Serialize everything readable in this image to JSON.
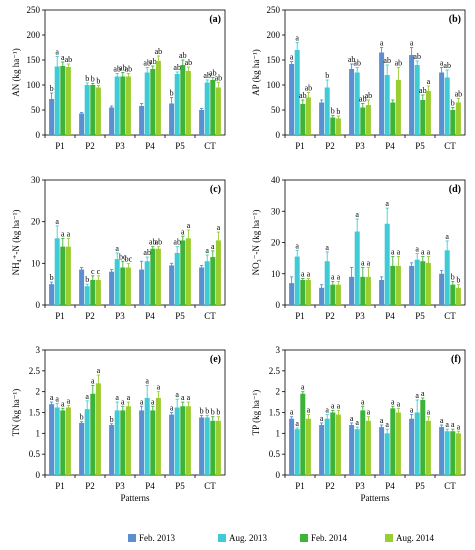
{
  "legend": [
    {
      "name": "Feb. 2013",
      "color": "#5b8fd0"
    },
    {
      "name": "Aug. 2013",
      "color": "#3ecbd6"
    },
    {
      "name": "Feb. 2014",
      "color": "#3cb43a"
    },
    {
      "name": "Aug. 2014",
      "color": "#9acd2f"
    }
  ],
  "chart_data": [
    {
      "type": "bar",
      "panel": "(a)",
      "ylabel": "AN (kg ha⁻¹)",
      "ylim": [
        0,
        250
      ],
      "yticks": [
        0,
        50,
        100,
        150,
        200,
        250
      ],
      "categories": [
        "P1",
        "P2",
        "P3",
        "P4",
        "P5",
        "CT"
      ],
      "series": [
        {
          "name": "Feb. 2013",
          "values": [
            72,
            43,
            55,
            58,
            63,
            50
          ],
          "errors": [
            12,
            2,
            3,
            5,
            12,
            3
          ],
          "letters": [
            "b",
            "",
            "",
            "",
            "b",
            ""
          ]
        },
        {
          "name": "Aug. 2013",
          "values": [
            137,
            100,
            117,
            125,
            122,
            105
          ],
          "errors": [
            20,
            4,
            6,
            10,
            4,
            5
          ],
          "letters": [
            "a",
            "b",
            "ab",
            "ab",
            "ab",
            "ab"
          ]
        },
        {
          "name": "Feb. 2014",
          "values": [
            138,
            100,
            117,
            132,
            140,
            110
          ],
          "errors": [
            8,
            3,
            8,
            6,
            10,
            5
          ],
          "letters": [
            "a",
            "b",
            "ab",
            "ab",
            "ab",
            "ab"
          ]
        },
        {
          "name": "Aug. 2014",
          "values": [
            136,
            95,
            117,
            148,
            128,
            95
          ],
          "errors": [
            6,
            4,
            6,
            10,
            8,
            10
          ],
          "letters": [
            "ab",
            "b",
            "ab",
            "ab",
            "ab",
            "ab"
          ]
        }
      ]
    },
    {
      "type": "bar",
      "panel": "(b)",
      "ylabel": "AP (kg ha⁻¹)",
      "ylim": [
        0,
        250
      ],
      "yticks": [
        0,
        50,
        100,
        150,
        200,
        250
      ],
      "categories": [
        "P1",
        "P2",
        "P3",
        "P4",
        "P5",
        "CT"
      ],
      "series": [
        {
          "name": "Feb. 2013",
          "values": [
            142,
            65,
            132,
            165,
            160,
            125
          ],
          "errors": [
            5,
            5,
            10,
            10,
            15,
            10
          ],
          "letters": [
            "a",
            "",
            "ab",
            "a",
            "a",
            "a"
          ]
        },
        {
          "name": "Aug. 2013",
          "values": [
            170,
            95,
            125,
            120,
            140,
            115
          ],
          "errors": [
            15,
            15,
            10,
            20,
            8,
            15
          ],
          "letters": [
            "a",
            "b",
            "ab",
            "ab",
            "ab",
            "ab"
          ]
        },
        {
          "name": "Feb. 2014",
          "values": [
            62,
            35,
            55,
            65,
            70,
            50
          ],
          "errors": [
            8,
            4,
            8,
            5,
            10,
            5
          ],
          "letters": [
            "ab",
            "b",
            "ab",
            "",
            "ab",
            "b"
          ]
        },
        {
          "name": "Aug. 2014",
          "values": [
            75,
            33,
            60,
            110,
            88,
            65
          ],
          "errors": [
            10,
            5,
            10,
            25,
            10,
            8
          ],
          "letters": [
            "ab",
            "b",
            "ab",
            "ab",
            "a",
            "ab"
          ]
        }
      ]
    },
    {
      "type": "bar",
      "panel": "(c)",
      "ylabel": "NH₄⁺-N (kg ha⁻¹)",
      "ylim": [
        0,
        30
      ],
      "yticks": [
        0,
        10,
        20,
        30
      ],
      "categories": [
        "P1",
        "P2",
        "P3",
        "P4",
        "P5",
        "CT"
      ],
      "series": [
        {
          "name": "Feb. 2013",
          "values": [
            5,
            8.5,
            8,
            8.5,
            9.5,
            9
          ],
          "errors": [
            0.5,
            0.5,
            0.5,
            2,
            0.5,
            0.5
          ],
          "letters": [
            "b",
            "",
            "",
            "",
            "",
            ""
          ]
        },
        {
          "name": "Aug. 2013",
          "values": [
            16,
            4.5,
            11,
            10.5,
            12.5,
            10.5
          ],
          "errors": [
            3,
            0.5,
            1.5,
            1,
            1.5,
            1.5
          ],
          "letters": [
            "a",
            "b",
            "a",
            "ab",
            "ab",
            "a"
          ]
        },
        {
          "name": "Feb. 2014",
          "values": [
            14,
            6,
            9,
            13.5,
            15.5,
            11.5
          ],
          "errors": [
            2,
            1,
            1.5,
            0.5,
            1,
            1.5
          ],
          "letters": [
            "a",
            "c",
            "bc",
            "ab",
            "a",
            "a"
          ]
        },
        {
          "name": "Aug. 2014",
          "values": [
            14,
            6,
            9,
            13.5,
            16,
            15.5
          ],
          "errors": [
            2,
            1,
            1,
            0.5,
            2,
            2
          ],
          "letters": [
            "a",
            "c",
            "bc",
            "ab",
            "a",
            "a"
          ]
        }
      ]
    },
    {
      "type": "bar",
      "panel": "(d)",
      "ylabel": "NO₃⁻-N (kg ha⁻¹)",
      "ylim": [
        0,
        40
      ],
      "yticks": [
        0,
        10,
        20,
        30,
        40
      ],
      "categories": [
        "P1",
        "P2",
        "P3",
        "P4",
        "P5",
        "CT"
      ],
      "series": [
        {
          "name": "Feb. 2013",
          "values": [
            7,
            5.5,
            9,
            8,
            12.5,
            10
          ],
          "errors": [
            2,
            1,
            3,
            1,
            1,
            1
          ],
          "letters": [
            "",
            "",
            "",
            "",
            "",
            ""
          ]
        },
        {
          "name": "Aug. 2013",
          "values": [
            15.5,
            14,
            23.5,
            26,
            14.5,
            17.5
          ],
          "errors": [
            2,
            3,
            4,
            5,
            2,
            3
          ],
          "letters": [
            "a",
            "a",
            "a",
            "a",
            "a",
            "a"
          ]
        },
        {
          "name": "Feb. 2014",
          "values": [
            8,
            6.5,
            9,
            12.5,
            14,
            6.5
          ],
          "errors": [
            0.5,
            1,
            3,
            3,
            1.5,
            1
          ],
          "letters": [
            "a",
            "a",
            "a",
            "a",
            "a",
            "b"
          ]
        },
        {
          "name": "Aug. 2014",
          "values": [
            8,
            6.5,
            9,
            12.5,
            13.5,
            5.5
          ],
          "errors": [
            0.5,
            1,
            3,
            3,
            2,
            1
          ],
          "letters": [
            "a",
            "a",
            "a",
            "a",
            "a",
            "b"
          ]
        }
      ]
    },
    {
      "type": "bar",
      "panel": "(e)",
      "ylabel": "TN (kg ha⁻¹)",
      "ylim": [
        0,
        3
      ],
      "yticks": [
        0,
        0.5,
        1,
        1.5,
        2,
        2.5,
        3
      ],
      "categories": [
        "P1",
        "P2",
        "P3",
        "P4",
        "P5",
        "CT"
      ],
      "series": [
        {
          "name": "Feb. 2013",
          "values": [
            1.7,
            1.25,
            1.2,
            1.55,
            1.45,
            1.38
          ],
          "errors": [
            0.05,
            0.03,
            0.03,
            0.1,
            0.05,
            0.05
          ],
          "letters": [
            "a",
            "b",
            "b",
            "a",
            "a",
            "b"
          ]
        },
        {
          "name": "Aug. 2013",
          "values": [
            1.62,
            1.58,
            1.55,
            1.85,
            1.62,
            1.38
          ],
          "errors": [
            0.1,
            0.2,
            0.2,
            0.3,
            0.2,
            0.05
          ],
          "letters": [
            "a",
            "a",
            "a",
            "a",
            "a",
            "b"
          ]
        },
        {
          "name": "Feb. 2014",
          "values": [
            1.55,
            1.95,
            1.55,
            1.55,
            1.65,
            1.3
          ],
          "errors": [
            0.05,
            0.2,
            0.1,
            0.1,
            0.1,
            0.1
          ],
          "letters": [
            "a",
            "a",
            "a",
            "a",
            "a",
            "b"
          ]
        },
        {
          "name": "Aug. 2014",
          "values": [
            1.62,
            2.2,
            1.65,
            1.85,
            1.65,
            1.3
          ],
          "errors": [
            0.05,
            0.2,
            0.1,
            0.15,
            0.1,
            0.1
          ],
          "letters": [
            "a",
            "a",
            "a",
            "a",
            "a",
            "b"
          ]
        }
      ]
    },
    {
      "type": "bar",
      "panel": "(f)",
      "ylabel": "TP (kg ha⁻¹)",
      "ylim": [
        0,
        3
      ],
      "yticks": [
        0,
        0.5,
        1,
        1.5,
        2,
        2.5,
        3
      ],
      "categories": [
        "P1",
        "P2",
        "P3",
        "P4",
        "P5",
        "CT"
      ],
      "series": [
        {
          "name": "Feb. 2013",
          "values": [
            1.35,
            1.2,
            1.2,
            1.15,
            1.35,
            1.15
          ],
          "errors": [
            0.05,
            0.05,
            0.05,
            0.05,
            0.1,
            0.05
          ],
          "letters": [
            "a",
            "a",
            "a",
            "a",
            "a",
            "a"
          ]
        },
        {
          "name": "Aug. 2013",
          "values": [
            1.1,
            1.35,
            1.1,
            1.0,
            1.5,
            1.05
          ],
          "errors": [
            0.03,
            0.1,
            0.05,
            0.1,
            0.3,
            0.05
          ],
          "letters": [
            "a",
            "a",
            "a",
            "a",
            "a",
            "a"
          ]
        },
        {
          "name": "Feb. 2014",
          "values": [
            1.95,
            1.5,
            1.55,
            1.6,
            1.8,
            1.05
          ],
          "errors": [
            0.05,
            0.05,
            0.1,
            0.05,
            0.05,
            0.05
          ],
          "letters": [
            "a",
            "a",
            "a",
            "a",
            "a",
            "a"
          ]
        },
        {
          "name": "Aug. 2014",
          "values": [
            1.35,
            1.45,
            1.3,
            1.5,
            1.3,
            1.0
          ],
          "errors": [
            0.1,
            0.1,
            0.1,
            0.1,
            0.1,
            0.05
          ],
          "letters": [
            "a",
            "a",
            "a",
            "a",
            "a",
            "a"
          ]
        }
      ]
    }
  ],
  "xlabel": "Patterns"
}
